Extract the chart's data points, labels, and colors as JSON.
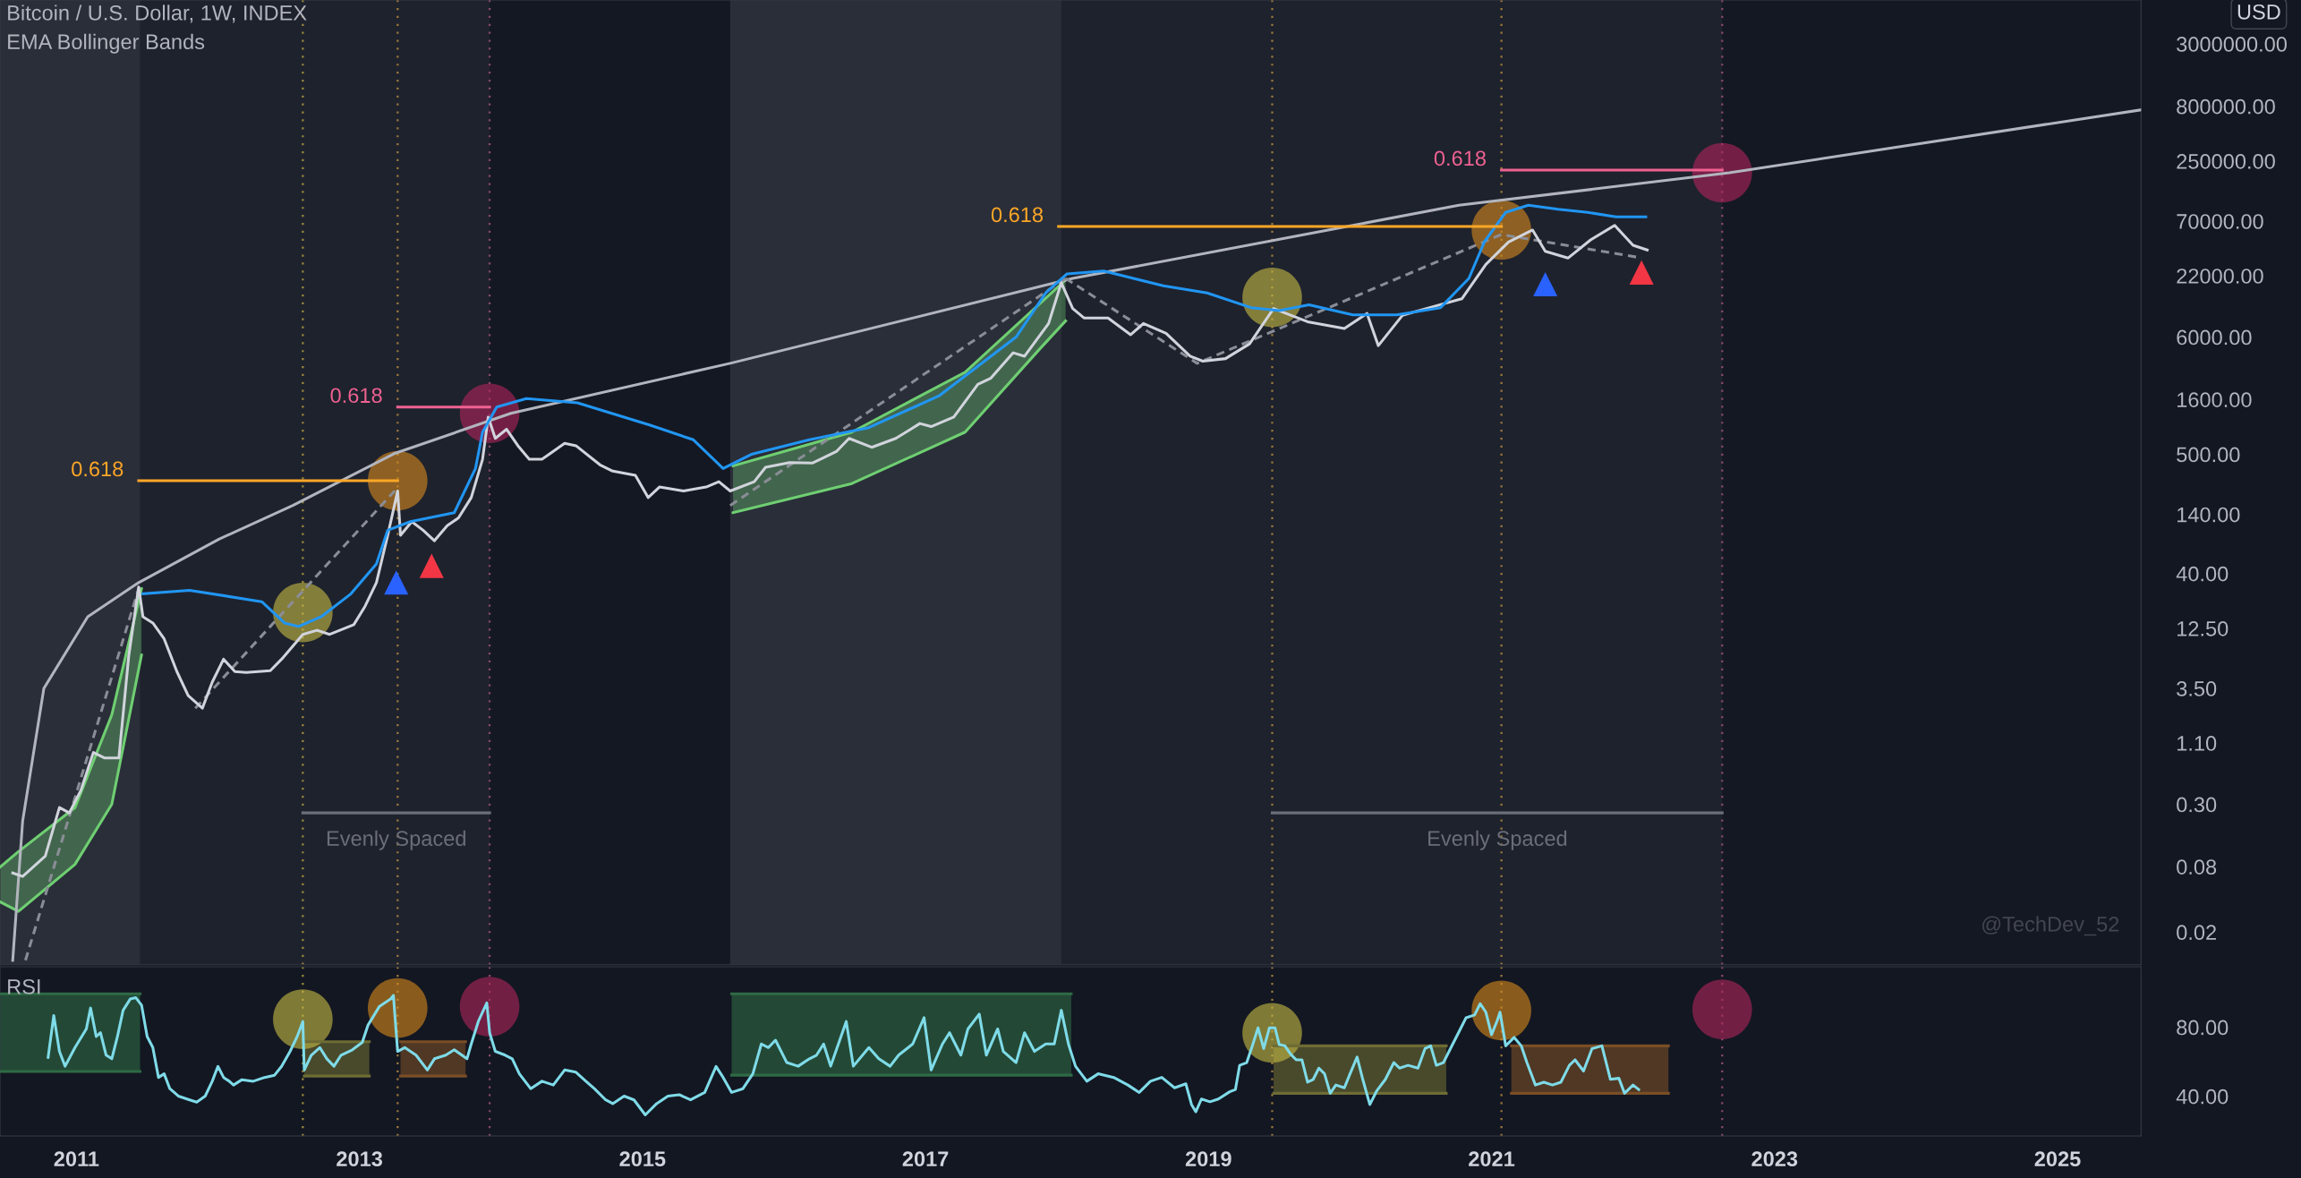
{
  "chart_data": [
    {
      "type": "line",
      "title": "Bitcoin / U.S. Dollar, 1W, INDEX",
      "subtitle": "EMA Bollinger Bands",
      "ylabel": "USD",
      "log": true,
      "xlim": [
        2010.46,
        2025.59
      ],
      "xticks": [
        2011,
        2013,
        2015,
        2017,
        2019,
        2021,
        2023,
        2025
      ],
      "ylim": [
        0.01,
        7600000
      ],
      "yticks": [
        {
          "value": 0.02,
          "label": "0.02"
        },
        {
          "value": 0.08,
          "label": "0.08"
        },
        {
          "value": 0.3,
          "label": "0.30"
        },
        {
          "value": 1.1,
          "label": "1.10"
        },
        {
          "value": 3.5,
          "label": "3.50"
        },
        {
          "value": 12.5,
          "label": "12.50"
        },
        {
          "value": 40,
          "label": "40.00"
        },
        {
          "value": 140,
          "label": "140.00"
        },
        {
          "value": 500,
          "label": "500.00"
        },
        {
          "value": 1600,
          "label": "1600.00"
        },
        {
          "value": 6000,
          "label": "6000.00"
        },
        {
          "value": 22000,
          "label": "22000.00"
        },
        {
          "value": 70000,
          "label": "70000.00"
        },
        {
          "value": 250000,
          "label": "250000.00"
        },
        {
          "value": 800000,
          "label": "800000.00"
        },
        {
          "value": 3000000,
          "label": "3000000.00"
        }
      ],
      "tick_labels": "y",
      "grid": false,
      "bands": [
        {
          "axis": "x",
          "from": 2010.46,
          "to": 2011.45,
          "color": "#2a2e39"
        },
        {
          "axis": "x",
          "from": 2013.92,
          "to": 2015.62,
          "color": "#141823"
        },
        {
          "axis": "x",
          "from": 2015.62,
          "to": 2017.96,
          "color": "#2a2e39"
        },
        {
          "axis": "x",
          "from": 2022.63,
          "to": 2025.59,
          "color": "#141823"
        }
      ],
      "ref_lines": [
        {
          "axis": "x",
          "value": 2012.6,
          "color": "#9c8a3c",
          "line_style": "dotted"
        },
        {
          "axis": "x",
          "value": 2013.27,
          "color": "#9c7a3c",
          "line_style": "dotted"
        },
        {
          "axis": "x",
          "value": 2013.92,
          "color": "#8a4a6a",
          "line_style": "dotted"
        },
        {
          "axis": "x",
          "value": 2019.45,
          "color": "#9c7a3c",
          "line_style": "dotted"
        },
        {
          "axis": "x",
          "value": 2021.07,
          "color": "#9c7a3c",
          "line_style": "dotted"
        },
        {
          "axis": "x",
          "value": 2022.63,
          "color": "#8a4a6a",
          "line_style": "dotted"
        }
      ],
      "series": [
        {
          "type": "line",
          "color": "#6fcf72",
          "x": [
            2010.46,
            2010.59,
            2010.99,
            2011.25,
            2011.46
          ],
          "values": [
            0.079,
            0.11,
            0.28,
            2.0,
            29
          ]
        },
        {
          "type": "line",
          "color": "#6fcf72",
          "x": [
            2010.46,
            2010.59,
            2010.99,
            2011.25,
            2011.46
          ],
          "values": [
            0.038,
            0.031,
            0.084,
            0.3,
            7.1
          ]
        },
        {
          "type": "line",
          "color": "#6fcf72",
          "x": [
            2015.64,
            2016.48,
            2017.28,
            2017.8,
            2017.99
          ],
          "values": [
            391,
            800,
            2850,
            11900,
            20200
          ]
        },
        {
          "type": "line",
          "color": "#6fcf72",
          "x": [
            2015.64,
            2016.48,
            2017.28,
            2017.8,
            2017.99
          ],
          "values": [
            145,
            269,
            800,
            4550,
            8450
          ]
        },
        {
          "type": "line",
          "color": "#b2b5be",
          "x": [
            2010.55,
            2010.62,
            2010.77,
            2011.08,
            2011.44,
            2012.01,
            2012.53,
            2013.25,
            2014.07,
            2015.62,
            2018.04,
            2020.77,
            2022.68,
            2025.59
          ],
          "values": [
            0.011,
            0.21,
            3.5,
            16,
            33,
            83,
            169,
            510,
            1190,
            3440,
            20800,
            98000,
            195000,
            741000
          ]
        },
        {
          "type": "line",
          "color": "#8a8d96",
          "line_style": "dashed",
          "x": [
            2010.64,
            2011.44
          ],
          "values": [
            0.011,
            29
          ]
        },
        {
          "type": "line",
          "color": "#8a8d96",
          "line_style": "dashed",
          "x": [
            2011.84,
            2013.25
          ],
          "values": [
            2.3,
            231
          ]
        },
        {
          "type": "line",
          "color": "#8a8d96",
          "line_style": "dashed",
          "x": [
            2015.62,
            2017.99
          ],
          "values": [
            169,
            20800
          ]
        },
        {
          "type": "line",
          "color": "#8a8d96",
          "line_style": "dashed",
          "x": [
            2017.99,
            2018.92,
            2021.07,
            2022.06
          ],
          "values": [
            20800,
            3440,
            52800,
            32100
          ]
        },
        {
          "type": "line",
          "color": "#d1d4dc",
          "x": [
            2010.55,
            2010.62,
            2010.78,
            2010.88,
            2010.95,
            2011.03,
            2011.12,
            2011.2,
            2011.3,
            2011.37,
            2011.44,
            2011.47,
            2011.54,
            2011.62,
            2011.71,
            2011.79,
            2011.89,
            2011.96,
            2012.04,
            2012.12,
            2012.2,
            2012.37,
            2012.45,
            2012.6,
            2012.7,
            2012.79,
            2012.96,
            2013.04,
            2013.12,
            2013.2,
            2013.27,
            2013.29,
            2013.37,
            2013.45,
            2013.53,
            2013.62,
            2013.7,
            2013.79,
            2013.87,
            2013.91,
            2013.96,
            2014.04,
            2014.12,
            2014.2,
            2014.29,
            2014.45,
            2014.53,
            2014.7,
            2014.79,
            2014.95,
            2015.04,
            2015.12,
            2015.29,
            2015.45,
            2015.54,
            2015.62,
            2015.79,
            2015.87,
            2016.04,
            2016.2,
            2016.37,
            2016.46,
            2016.62,
            2016.79,
            2016.96,
            2017.04,
            2017.2,
            2017.37,
            2017.46,
            2017.62,
            2017.7,
            2017.87,
            2017.96,
            2018.04,
            2018.12,
            2018.29,
            2018.45,
            2018.54,
            2018.7,
            2018.87,
            2018.96,
            2019.12,
            2019.29,
            2019.46,
            2019.54,
            2019.7,
            2019.96,
            2020.12,
            2020.2,
            2020.37,
            2020.54,
            2020.79,
            2020.96,
            2021.12,
            2021.29,
            2021.38,
            2021.54,
            2021.7,
            2021.87,
            2022.0,
            2022.1
          ],
          "values": [
            0.07,
            0.065,
            0.1,
            0.28,
            0.25,
            0.4,
            0.9,
            0.8,
            0.8,
            7,
            30,
            16,
            14,
            10,
            5,
            3,
            2.3,
            4,
            6.5,
            5,
            4.9,
            5.1,
            6.5,
            11,
            12,
            11,
            13.5,
            20,
            33,
            90,
            230,
            90,
            120,
            100,
            80,
            110,
            130,
            200,
            450,
            1100,
            700,
            850,
            600,
            450,
            450,
            630,
            600,
            400,
            350,
            320,
            200,
            250,
            230,
            250,
            280,
            230,
            280,
            380,
            420,
            415,
            530,
            700,
            580,
            700,
            960,
            900,
            1100,
            2200,
            2500,
            4300,
            4000,
            8000,
            19000,
            11000,
            9000,
            9000,
            6300,
            8000,
            6500,
            4000,
            3600,
            3800,
            5200,
            11000,
            10000,
            8300,
            7200,
            9900,
            5000,
            9500,
            11000,
            13500,
            28000,
            45000,
            58000,
            37000,
            32000,
            47000,
            64000,
            42000,
            38000
          ]
        },
        {
          "type": "line",
          "color": "#2196f3",
          "x": [
            2011.47,
            2011.8,
            2012.31,
            2012.47,
            2012.57,
            2012.73,
            2012.94,
            2013.12,
            2013.2,
            2013.36,
            2013.67,
            2013.82,
            2013.87,
            2013.97,
            2014.18,
            2014.54,
            2015.05,
            2015.36,
            2015.57,
            2015.77,
            2016.18,
            2016.6,
            2017.1,
            2017.64,
            2017.85,
            2018.0,
            2018.26,
            2018.68,
            2018.99,
            2019.3,
            2019.5,
            2019.71,
            2020.02,
            2020.33,
            2020.64,
            2020.84,
            2020.95,
            2021.1,
            2021.26,
            2021.47,
            2021.68,
            2021.88,
            2022.09
          ],
          "values": [
            26,
            28,
            22,
            14,
            13,
            16,
            26,
            49,
            100,
            120,
            145,
            370,
            800,
            1360,
            1630,
            1490,
            930,
            680,
            370,
            500,
            680,
            880,
            1740,
            6000,
            15300,
            22900,
            24300,
            17800,
            15300,
            11200,
            10500,
            11900,
            9600,
            9600,
            11200,
            20800,
            45300,
            84300,
            98000,
            90000,
            84300,
            76800,
            76800
          ]
        },
        {
          "type": "line",
          "color": "#ffa726",
          "x": [
            2011.44,
            2013.27
          ],
          "values": [
            286,
            286
          ]
        },
        {
          "type": "line",
          "color": "#f06292",
          "x": [
            2013.27,
            2013.92
          ],
          "values": [
            1360,
            1360
          ]
        },
        {
          "type": "line",
          "color": "#ffa726",
          "x": [
            2017.94,
            2021.07
          ],
          "values": [
            62600,
            62600
          ]
        },
        {
          "type": "line",
          "color": "#f06292",
          "x": [
            2021.07,
            2022.63
          ],
          "values": [
            207000,
            207000
          ]
        },
        {
          "type": "line",
          "color": "#6b6e78",
          "x": [
            2012.6,
            2013.92
          ],
          "values": [
            0.25,
            0.25
          ]
        },
        {
          "type": "line",
          "color": "#6b6e78",
          "x": [
            2019.45,
            2022.63
          ],
          "values": [
            0.25,
            0.25
          ]
        },
        {
          "type": "scatter",
          "marker": "circle",
          "x": [
            2012.6,
            2013.27,
            2013.92,
            2019.45,
            2021.07,
            2022.63
          ],
          "values": [
            17.5,
            286,
            1190,
            13900,
            58000,
            195000
          ],
          "colors": [
            "#c8bd45",
            "#d98a1c",
            "#b3245c",
            "#c8bd45",
            "#d98a1c",
            "#b3245c"
          ]
        },
        {
          "type": "scatter",
          "marker": "triangle",
          "color": "#2962ff",
          "x": [
            2013.26,
            2021.38
          ],
          "values": [
            33,
            18400
          ]
        },
        {
          "type": "scatter",
          "marker": "triangle",
          "color": "#f23645",
          "x": [
            2013.51,
            2022.06
          ],
          "values": [
            47,
            23600
          ]
        }
      ],
      "annotations": [
        {
          "text": "0.618",
          "x": 2011.44,
          "y": 286
        },
        {
          "text": "0.618",
          "x": 2013.27,
          "y": 1360
        },
        {
          "text": "0.618",
          "x": 2017.94,
          "y": 62600
        },
        {
          "text": "0.618",
          "x": 2021.07,
          "y": 207000
        },
        {
          "text": "Evenly Spaced",
          "x": 2013.26,
          "y": 0.14
        },
        {
          "text": "Evenly Spaced",
          "x": 2021.04,
          "y": 0.14
        },
        "@TechDev_52"
      ]
    },
    {
      "type": "line",
      "title": "RSI",
      "xlim": [
        2010.46,
        2025.59
      ],
      "xticks": [
        2011,
        2013,
        2015,
        2017,
        2019,
        2021,
        2023,
        2025
      ],
      "ylim": [
        17,
        115
      ],
      "yticks": [
        {
          "value": 80,
          "label": "80.00"
        },
        {
          "value": 40,
          "label": "40.00"
        }
      ],
      "grid": false,
      "ref_lines": [
        {
          "axis": "x",
          "value": 2012.6,
          "color": "#9c8a3c",
          "line_style": "dotted"
        },
        {
          "axis": "x",
          "value": 2013.27,
          "color": "#9c7a3c",
          "line_style": "dotted"
        },
        {
          "axis": "x",
          "value": 2013.92,
          "color": "#8a4a6a",
          "line_style": "dotted"
        },
        {
          "axis": "x",
          "value": 2019.45,
          "color": "#9c7a3c",
          "line_style": "dotted"
        },
        {
          "axis": "x",
          "value": 2021.07,
          "color": "#9c7a3c",
          "line_style": "dotted"
        },
        {
          "axis": "x",
          "value": 2022.63,
          "color": "#8a4a6a",
          "line_style": "dotted"
        }
      ],
      "series": [
        {
          "type": "line",
          "color": "#2e6b45",
          "x": [
            2010.46,
            2011.45
          ],
          "values": [
            99.3,
            99.3
          ]
        },
        {
          "type": "line",
          "color": "#2e6b45",
          "x": [
            2010.46,
            2011.45
          ],
          "values": [
            54.3,
            54.3
          ]
        },
        {
          "type": "line",
          "color": "#6e6c34",
          "x": [
            2012.61,
            2013.07
          ],
          "values": [
            71.6,
            71.6
          ]
        },
        {
          "type": "line",
          "color": "#6e6c34",
          "x": [
            2012.61,
            2013.07
          ],
          "values": [
            51.7,
            51.7
          ]
        },
        {
          "type": "line",
          "color": "#7a4e26",
          "x": [
            2013.29,
            2013.75
          ],
          "values": [
            71.6,
            71.6
          ]
        },
        {
          "type": "line",
          "color": "#7a4e26",
          "x": [
            2013.29,
            2013.75
          ],
          "values": [
            51.7,
            51.7
          ]
        },
        {
          "type": "line",
          "color": "#2e6b45",
          "x": [
            2015.63,
            2018.03
          ],
          "values": [
            99.3,
            99.3
          ]
        },
        {
          "type": "line",
          "color": "#2e6b45",
          "x": [
            2015.63,
            2018.03
          ],
          "values": [
            52.2,
            52.2
          ]
        },
        {
          "type": "line",
          "color": "#6e6c34",
          "x": [
            2019.46,
            2020.68
          ],
          "values": [
            69.2,
            69.2
          ]
        },
        {
          "type": "line",
          "color": "#6e6c34",
          "x": [
            2019.46,
            2020.68
          ],
          "values": [
            41.7,
            41.7
          ]
        },
        {
          "type": "line",
          "color": "#7a4e26",
          "x": [
            2021.14,
            2022.25
          ],
          "values": [
            69.2,
            69.2
          ]
        },
        {
          "type": "line",
          "color": "#7a4e26",
          "x": [
            2021.14,
            2022.25
          ],
          "values": [
            41.7,
            41.7
          ]
        },
        {
          "type": "line",
          "color": "#7fdbe8",
          "x": [
            2010.8,
            2010.84,
            2010.88,
            2010.92,
            2010.99,
            2011.07,
            2011.1,
            2011.14,
            2011.17,
            2011.21,
            2011.25,
            2011.29,
            2011.33,
            2011.38,
            2011.42,
            2011.46,
            2011.5,
            2011.54,
            2011.58,
            2011.62,
            2011.66,
            2011.72,
            2011.8,
            2011.85,
            2011.91,
            2011.96,
            2012.0,
            2012.04,
            2012.08,
            2012.11,
            2012.17,
            2012.25,
            2012.33,
            2012.4,
            2012.45,
            2012.51,
            2012.56,
            2012.6,
            2012.61,
            2012.66,
            2012.72,
            2012.77,
            2012.82,
            2012.87,
            2012.95,
            2013.02,
            2013.06,
            2013.14,
            2013.22,
            2013.24,
            2013.27,
            2013.32,
            2013.4,
            2013.48,
            2013.53,
            2013.61,
            2013.67,
            2013.76,
            2013.79,
            2013.84,
            2013.9,
            2013.92,
            2013.96,
            2014.03,
            2014.08,
            2014.13,
            2014.21,
            2014.29,
            2014.37,
            2014.45,
            2014.53,
            2014.6,
            2014.66,
            2014.74,
            2014.79,
            2014.87,
            2014.94,
            2015.02,
            2015.1,
            2015.18,
            2015.26,
            2015.34,
            2015.44,
            2015.52,
            2015.57,
            2015.63,
            2015.71,
            2015.78,
            2015.84,
            2015.89,
            2015.94,
            2016.02,
            2016.1,
            2016.18,
            2016.23,
            2016.28,
            2016.33,
            2016.44,
            2016.49,
            2016.6,
            2016.67,
            2016.75,
            2016.81,
            2016.91,
            2016.99,
            2017.04,
            2017.12,
            2017.17,
            2017.25,
            2017.3,
            2017.38,
            2017.43,
            2017.51,
            2017.55,
            2017.64,
            2017.7,
            2017.77,
            2017.85,
            2017.91,
            2017.96,
            2018.01,
            2018.06,
            2018.14,
            2018.22,
            2018.33,
            2018.43,
            2018.51,
            2018.59,
            2018.67,
            2018.76,
            2018.84,
            2018.88,
            2018.91,
            2018.95,
            2019.01,
            2019.07,
            2019.15,
            2019.19,
            2019.22,
            2019.27,
            2019.31,
            2019.35,
            2019.39,
            2019.43,
            2019.47,
            2019.5,
            2019.54,
            2019.58,
            2019.62,
            2019.66,
            2019.7,
            2019.74,
            2019.78,
            2019.82,
            2019.86,
            2019.9,
            2019.96,
            2020.0,
            2020.05,
            2020.09,
            2020.14,
            2020.19,
            2020.25,
            2020.31,
            2020.35,
            2020.41,
            2020.48,
            2020.53,
            2020.57,
            2020.61,
            2020.66,
            2020.7,
            2020.74,
            2020.78,
            2020.82,
            2020.88,
            2020.92,
            2020.96,
            2021.0,
            2021.04,
            2021.06,
            2021.1,
            2021.16,
            2021.21,
            2021.25,
            2021.31,
            2021.37,
            2021.43,
            2021.49,
            2021.55,
            2021.59,
            2021.65,
            2021.71,
            2021.78,
            2021.84,
            2021.9,
            2021.94,
            2022.0,
            2022.04
          ],
          "values": [
            62.5,
            86.8,
            66.0,
            57.4,
            68.2,
            79.0,
            91.1,
            74.6,
            76.8,
            63.8,
            61.7,
            74.6,
            89.8,
            96.3,
            97.1,
            92.8,
            74.6,
            68.2,
            50.9,
            53.0,
            44.4,
            40.1,
            37.9,
            36.6,
            40.1,
            48.7,
            57.3,
            50.9,
            48.7,
            46.5,
            49.6,
            48.7,
            50.9,
            52.2,
            57.3,
            66.0,
            74.6,
            83.3,
            55.2,
            63.8,
            68.2,
            61.7,
            57.4,
            63.8,
            66.9,
            71.2,
            81.1,
            91.9,
            96.3,
            98.4,
            66.0,
            68.2,
            63.8,
            55.2,
            61.7,
            63.8,
            66.9,
            61.7,
            70.3,
            83.3,
            94.1,
            76.8,
            66.0,
            63.8,
            61.7,
            53.0,
            44.4,
            48.7,
            46.5,
            55.2,
            53.9,
            48.7,
            44.4,
            37.9,
            35.7,
            40.1,
            37.9,
            29.2,
            35.7,
            40.1,
            40.9,
            37.9,
            42.2,
            57.3,
            50.9,
            42.2,
            44.4,
            53.0,
            70.3,
            68.2,
            72.5,
            59.5,
            57.4,
            61.7,
            63.8,
            70.3,
            57.4,
            83.3,
            57.4,
            68.2,
            61.7,
            57.4,
            63.8,
            70.3,
            85.5,
            55.2,
            70.3,
            76.8,
            63.8,
            79.0,
            87.6,
            63.8,
            79.0,
            66.0,
            59.5,
            76.8,
            66.0,
            70.3,
            70.3,
            89.8,
            70.3,
            57.4,
            48.7,
            53.0,
            50.9,
            46.5,
            42.2,
            48.7,
            50.9,
            44.9,
            47.2,
            35.2,
            31.0,
            38.4,
            36.8,
            38.4,
            42.6,
            43.9,
            57.9,
            59.5,
            69.2,
            79.6,
            67.6,
            79.6,
            79.6,
            69.9,
            69.2,
            64.4,
            61.1,
            61.1,
            48.2,
            49.8,
            56.3,
            53.0,
            41.7,
            46.5,
            44.9,
            53.0,
            62.7,
            49.8,
            35.2,
            43.3,
            49.8,
            59.5,
            56.3,
            57.9,
            56.3,
            67.6,
            69.2,
            57.9,
            59.5,
            66.0,
            72.5,
            79.0,
            85.5,
            87.1,
            93.6,
            88.7,
            75.7,
            83.8,
            88.7,
            69.2,
            74.1,
            69.2,
            59.5,
            46.5,
            48.1,
            46.5,
            48.1,
            57.9,
            61.1,
            54.6,
            67.6,
            69.2,
            49.8,
            50.4,
            41.7,
            46.5,
            43.9
          ]
        },
        {
          "type": "scatter",
          "marker": "circle",
          "x": [
            2012.6,
            2013.27,
            2013.92,
            2019.45,
            2021.07,
            2022.63
          ],
          "values": [
            84.6,
            91.1,
            91.9,
            76.7,
            89.7,
            90.3
          ],
          "colors": [
            "#c8bd45",
            "#d98a1c",
            "#b3245c",
            "#c8bd45",
            "#d98a1c",
            "#b3245c"
          ]
        }
      ]
    }
  ]
}
